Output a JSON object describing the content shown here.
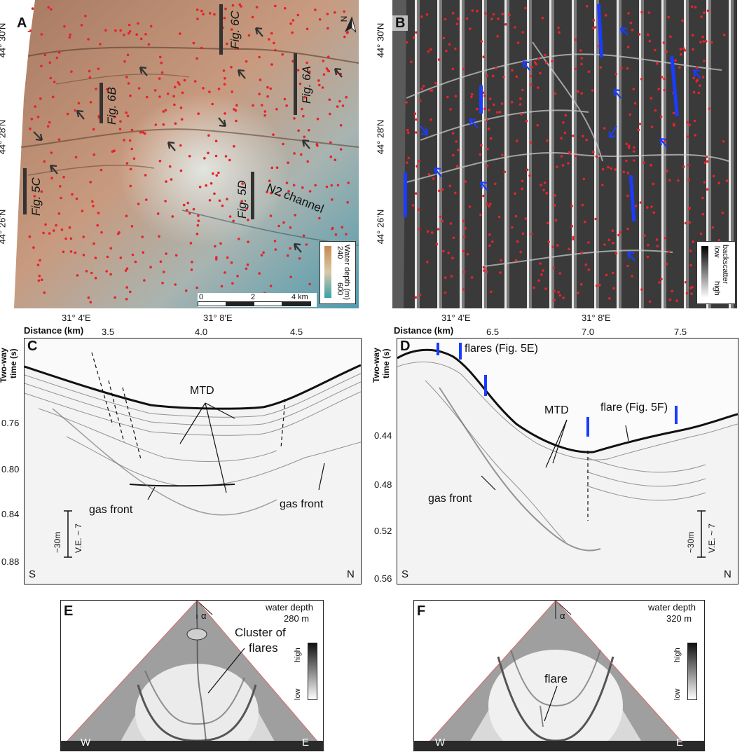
{
  "panel_a": {
    "letter": "A",
    "lat_labels": [
      "44° 30'N",
      "44° 28'N",
      "44° 26'N"
    ],
    "lon_labels": [
      "31° 4'E",
      "31° 8'E"
    ],
    "fig_labels": [
      "Fig. 6C",
      "Fig. 6B",
      "Fig. 6A",
      "Fig. 5C",
      "Fig. 5D"
    ],
    "channel_label": "N2 channel",
    "north_label": "N",
    "depth_legend": {
      "title": "Water depth (m)",
      "min": "240",
      "max": "600"
    },
    "scale": {
      "values": [
        "0",
        "2",
        "4 km"
      ]
    },
    "colors": {
      "shallow": "#c7805a",
      "deep": "#5da6b5",
      "seep": "#e8222a",
      "arrow": "#333333"
    }
  },
  "panel_b": {
    "letter": "B",
    "lat_labels": [
      "44° 30'N",
      "44° 28'N",
      "44° 26'N"
    ],
    "lon_labels": [
      "31° 4'E",
      "31° 8'E"
    ],
    "legend": {
      "title": "backscatter",
      "low": "low",
      "high": "high"
    },
    "colors": {
      "seep": "#e8222a",
      "arrow": "#1a3cff",
      "profile": "#1a3cff"
    }
  },
  "panel_c": {
    "letter": "C",
    "distance_label": "Distance (km)",
    "distance_ticks": [
      "3.5",
      "4.0",
      "4.5"
    ],
    "time_label_1": "Two-way",
    "time_label_2": "time (s)",
    "time_ticks": [
      "0.76",
      "0.80",
      "0.84",
      "0.88"
    ],
    "labels": {
      "mtd": "MTD",
      "gas_front_1": "gas front",
      "gas_front_2": "gas front"
    },
    "scale_bar": {
      "height": "~30m",
      "ve": "V.E. ~ 7"
    },
    "south": "S",
    "north": "N"
  },
  "panel_d": {
    "letter": "D",
    "distance_label": "Distance (km)",
    "distance_ticks": [
      "6.5",
      "7.0",
      "7.5"
    ],
    "time_label_1": "Two-way",
    "time_label_2": "time (s)",
    "time_ticks": [
      "0.44",
      "0.48",
      "0.52",
      "0.56"
    ],
    "labels": {
      "flares": "flares (Fig. 5E)",
      "flare": "flare (Fig. 5F)",
      "mtd": "MTD",
      "gas_front": "gas front"
    },
    "scale_bar": {
      "height": "~30m",
      "ve": "V.E. ~ 7"
    },
    "south": "S",
    "north": "N"
  },
  "panel_e": {
    "letter": "E",
    "water_depth_label": "water depth",
    "water_depth_value": "280 m",
    "alpha": "α",
    "annotation_1": "Cluster of",
    "annotation_2": "flares",
    "legend": {
      "high": "high",
      "low": "low"
    },
    "west": "W",
    "east": "E"
  },
  "panel_f": {
    "letter": "F",
    "water_depth_label": "water depth",
    "water_depth_value": "320 m",
    "alpha": "α",
    "annotation": "flare",
    "legend": {
      "high": "high",
      "low": "low"
    },
    "west": "W",
    "east": "E"
  }
}
